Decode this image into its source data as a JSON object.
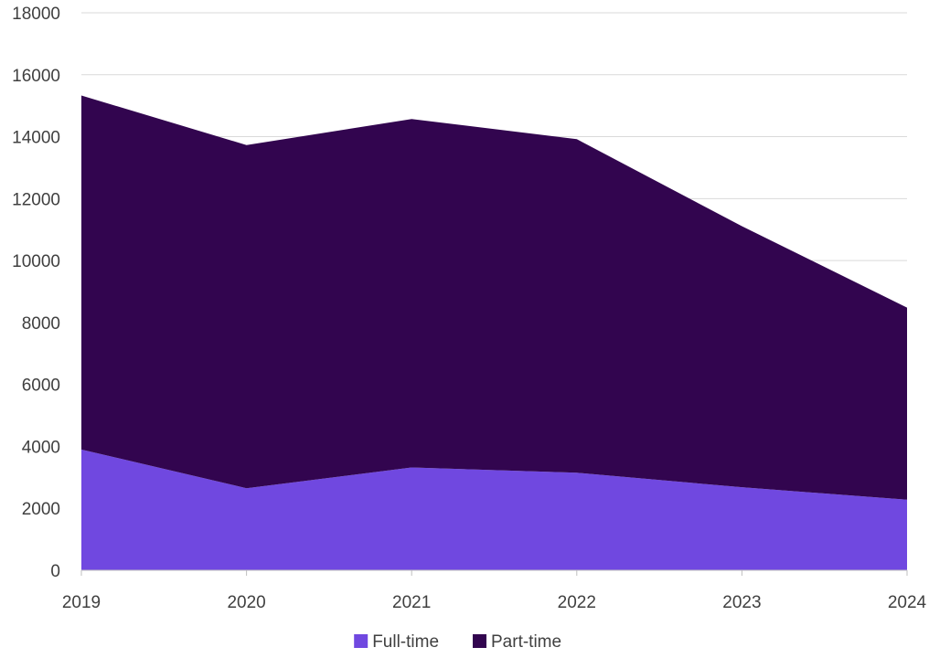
{
  "chart_data": {
    "type": "area",
    "stacked": true,
    "title": "",
    "xlabel": "",
    "ylabel": "",
    "x": [
      "2019",
      "2020",
      "2021",
      "2022",
      "2023",
      "2024"
    ],
    "ylim": [
      0,
      18000
    ],
    "yticks": [
      0,
      2000,
      4000,
      6000,
      8000,
      10000,
      12000,
      14000,
      16000,
      18000
    ],
    "grid": true,
    "legend_position": "bottom",
    "series": [
      {
        "name": "Full-time",
        "color": "#7048e0",
        "values": [
          3900,
          2650,
          3320,
          3150,
          2680,
          2280
        ]
      },
      {
        "name": "Part-time",
        "color": "#32054f",
        "values": [
          11430,
          11080,
          11250,
          10770,
          8430,
          6200
        ]
      }
    ]
  }
}
